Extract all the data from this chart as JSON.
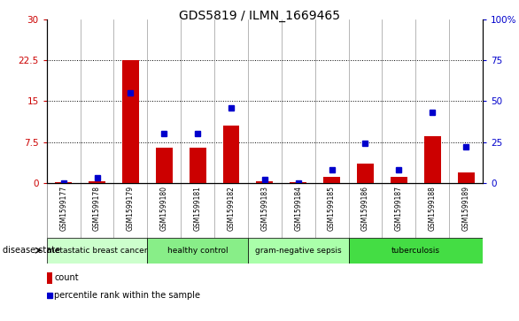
{
  "title": "GDS5819 / ILMN_1669465",
  "samples": [
    "GSM1599177",
    "GSM1599178",
    "GSM1599179",
    "GSM1599180",
    "GSM1599181",
    "GSM1599182",
    "GSM1599183",
    "GSM1599184",
    "GSM1599185",
    "GSM1599186",
    "GSM1599187",
    "GSM1599188",
    "GSM1599189"
  ],
  "counts": [
    0.2,
    0.3,
    22.5,
    6.5,
    6.5,
    10.5,
    0.3,
    0.2,
    1.2,
    3.5,
    1.2,
    8.5,
    2.0
  ],
  "percentiles": [
    0,
    3,
    55,
    30,
    30,
    46,
    2,
    0,
    8,
    24,
    8,
    43,
    22
  ],
  "ylim_left": [
    0,
    30
  ],
  "ylim_right": [
    0,
    100
  ],
  "yticks_left": [
    0,
    7.5,
    15,
    22.5,
    30
  ],
  "yticks_right": [
    0,
    25,
    50,
    75,
    100
  ],
  "yticklabels_left": [
    "0",
    "7.5",
    "15",
    "22.5",
    "30"
  ],
  "yticklabels_right": [
    "0",
    "25",
    "50",
    "75",
    "100%"
  ],
  "bar_color": "#cc0000",
  "dot_color": "#0000cc",
  "groups": [
    {
      "label": "metastatic breast cancer",
      "start": 0,
      "end": 3,
      "color": "#ccffcc"
    },
    {
      "label": "healthy control",
      "start": 3,
      "end": 6,
      "color": "#88ee88"
    },
    {
      "label": "gram-negative sepsis",
      "start": 6,
      "end": 9,
      "color": "#aaffaa"
    },
    {
      "label": "tuberculosis",
      "start": 9,
      "end": 13,
      "color": "#44dd44"
    }
  ],
  "disease_state_label": "disease state",
  "legend_count_label": "count",
  "legend_percentile_label": "percentile rank within the sample",
  "xtick_bg": "#cccccc",
  "grid_color": "#000000",
  "separator_color": "#999999"
}
